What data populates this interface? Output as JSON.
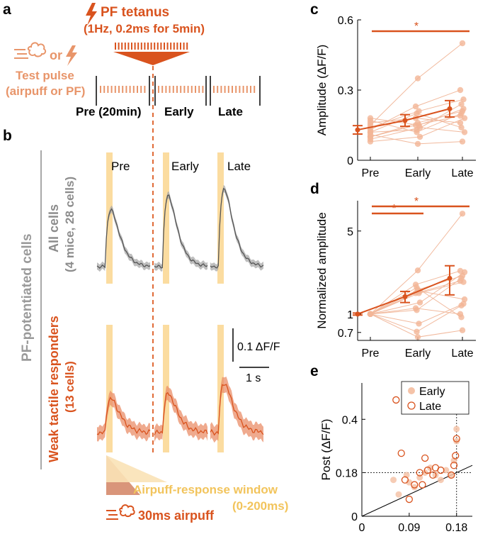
{
  "panel_letters": {
    "a": "a",
    "b": "b",
    "c": "c",
    "d": "d",
    "e": "e"
  },
  "panel_a": {
    "tetanus_title": "PF tetanus",
    "tetanus_params": "(1Hz, 0.2ms for 5min)",
    "test_or": "or",
    "test_pulse_line1": "Test pulse",
    "test_pulse_line2": "(airpuff or PF)",
    "phases": [
      "Pre (20min)",
      "Early",
      "Late"
    ]
  },
  "panel_b": {
    "side_label": "PF-potentiated cells",
    "group1_line1": "All cells",
    "group1_line2": "(4 mice, 28 cells)",
    "group2_line1": "Weak tactile responders",
    "group2_line2": "(13 cells)",
    "trace_titles": [
      "Pre",
      "Early",
      "Late"
    ],
    "scale_y": "0.1 ΔF/F",
    "scale_x": "1 s",
    "window_label_line1": "Airpuff-response window",
    "window_label_line2": "(0-200ms)",
    "airpuff_label": "30ms airpuff"
  },
  "colors": {
    "orange": "#d9531e",
    "light_orange": "#e8a07a",
    "gray": "#8c8c8c",
    "yellow": "#f7d48a",
    "band": "#fbdca0"
  },
  "chart_data": [
    {
      "panel": "c",
      "type": "scatter",
      "ylabel": "Amplitude (ΔF/F)",
      "categories": [
        "Pre",
        "Early",
        "Late"
      ],
      "yticks": [
        "0",
        "0.3",
        "0.6"
      ],
      "ylim": [
        0,
        0.6
      ],
      "mean": [
        0.13,
        0.17,
        0.22
      ],
      "error": [
        0.018,
        0.025,
        0.035
      ],
      "cells": [
        [
          0.1,
          0.15,
          0.19
        ],
        [
          0.12,
          0.2,
          0.14
        ],
        [
          0.15,
          0.35,
          0.5
        ],
        [
          0.18,
          0.15,
          0.22
        ],
        [
          0.08,
          0.1,
          0.18
        ],
        [
          0.13,
          0.23,
          0.3
        ],
        [
          0.17,
          0.12,
          0.2
        ],
        [
          0.11,
          0.07,
          0.08
        ],
        [
          0.14,
          0.21,
          0.26
        ],
        [
          0.09,
          0.14,
          0.12
        ],
        [
          0.16,
          0.18,
          0.16
        ],
        [
          0.12,
          0.13,
          0.24
        ],
        [
          0.1,
          0.16,
          0.21
        ]
      ],
      "significance": [
        {
          "from": "Pre",
          "to": "Late",
          "label": "*"
        }
      ]
    },
    {
      "panel": "d",
      "type": "scatter",
      "ylabel": "Normalized amplitude",
      "categories": [
        "Pre",
        "Early",
        "Late"
      ],
      "yscale": "log",
      "yticks": [
        "0.7",
        "1",
        "5"
      ],
      "ylim": [
        0.6,
        9
      ],
      "mean": [
        1.0,
        1.4,
        2.0
      ],
      "error": [
        0.02,
        0.15,
        0.55
      ],
      "cells": [
        [
          1,
          1.5,
          1.9
        ],
        [
          1,
          1.67,
          0.94
        ],
        [
          1,
          2.33,
          7.0
        ],
        [
          1,
          0.83,
          1.22
        ],
        [
          1,
          1.25,
          2.25
        ],
        [
          1,
          1.77,
          2.31
        ],
        [
          1,
          0.71,
          1.18
        ],
        [
          1,
          0.64,
          0.73
        ],
        [
          1,
          1.5,
          1.86
        ],
        [
          1,
          1.56,
          1.33
        ],
        [
          1,
          1.12,
          1.0
        ],
        [
          1,
          1.08,
          2.0
        ],
        [
          1,
          1.6,
          2.1
        ]
      ],
      "significance": [
        {
          "from": "Pre",
          "to": "Early",
          "label": "*"
        },
        {
          "from": "Pre",
          "to": "Late",
          "label": "*"
        }
      ]
    },
    {
      "panel": "e",
      "type": "scatter",
      "xlabel": "Pre (ΔF/F)",
      "ylabel": "Post (ΔF/F)",
      "xticks": [
        "0",
        "0.09",
        "0.18"
      ],
      "yticks": [
        "0",
        "0.18",
        "0.4"
      ],
      "xlim": [
        0,
        0.21
      ],
      "ylim": [
        0,
        0.55
      ],
      "threshold": 0.18,
      "legend": [
        "Early",
        "Late"
      ],
      "series": [
        {
          "name": "Early",
          "x": [
            0.06,
            0.07,
            0.085,
            0.09,
            0.1,
            0.11,
            0.12,
            0.13,
            0.14,
            0.15,
            0.16,
            0.17,
            0.175,
            0.18,
            0.18
          ],
          "y": [
            0.15,
            0.09,
            0.17,
            0.14,
            0.12,
            0.16,
            0.18,
            0.2,
            0.17,
            0.15,
            0.19,
            0.17,
            0.23,
            0.31,
            0.36
          ]
        },
        {
          "name": "Late",
          "x": [
            0.065,
            0.075,
            0.082,
            0.09,
            0.1,
            0.11,
            0.115,
            0.12,
            0.125,
            0.135,
            0.14,
            0.15,
            0.17,
            0.175,
            0.178,
            0.18
          ],
          "y": [
            0.48,
            0.26,
            0.15,
            0.07,
            0.13,
            0.18,
            0.13,
            0.24,
            0.19,
            0.17,
            0.2,
            0.19,
            0.17,
            0.21,
            0.25,
            0.32
          ]
        }
      ]
    }
  ]
}
